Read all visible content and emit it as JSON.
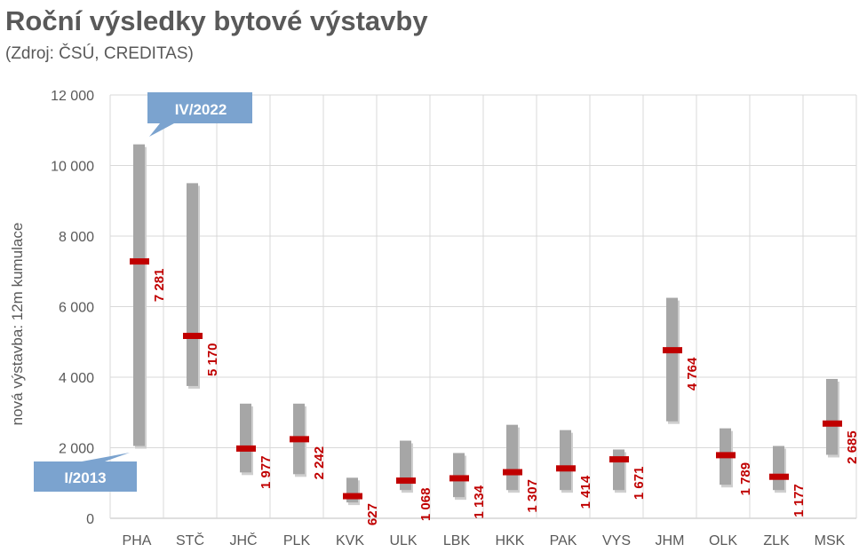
{
  "title": "Roční výsledky bytové výstavby",
  "subtitle": "(Zdroj: ČSÚ, CREDITAS)",
  "chart_data": {
    "type": "range-bar",
    "title": "Roční výsledky bytové výstavby",
    "subtitle": "(Zdroj: ČSÚ, CREDITAS)",
    "ylabel": "nová výstavba: 12m kumulace",
    "xlabel": "",
    "ylim": [
      0,
      12000
    ],
    "yticks": [
      0,
      2000,
      4000,
      6000,
      8000,
      10000,
      12000
    ],
    "ytick_labels": [
      "0",
      "2 000",
      "4 000",
      "6 000",
      "8 000",
      "10 000",
      "12 000"
    ],
    "grid": true,
    "categories": [
      "PHA",
      "STČ",
      "JHČ",
      "PLK",
      "KVK",
      "ULK",
      "LBK",
      "HKK",
      "PAK",
      "VYS",
      "JHM",
      "OLK",
      "ZLK",
      "MSK"
    ],
    "range_low": [
      2050,
      3750,
      1300,
      1250,
      450,
      800,
      600,
      800,
      800,
      800,
      2750,
      950,
      800,
      1800
    ],
    "range_high": [
      10600,
      9500,
      3250,
      3250,
      1150,
      2200,
      1850,
      2650,
      2500,
      1950,
      6250,
      2550,
      2050,
      3950
    ],
    "values": [
      7281,
      5170,
      1977,
      2242,
      627,
      1068,
      1134,
      1307,
      1414,
      1671,
      4764,
      1789,
      1177,
      2685
    ],
    "value_labels": [
      "7 281",
      "5 170",
      "1 977",
      "2 242",
      "627",
      "1 068",
      "1 134",
      "1 307",
      "1 414",
      "1 671",
      "4 764",
      "1 789",
      "1 177",
      "2 685"
    ],
    "annotations": [
      "IV/2022",
      "I/2013"
    ],
    "colors": {
      "range": "#a6a6a6",
      "marker": "#c00000",
      "callout": "#7ba3cf",
      "grid": "#d9d9d9"
    }
  }
}
